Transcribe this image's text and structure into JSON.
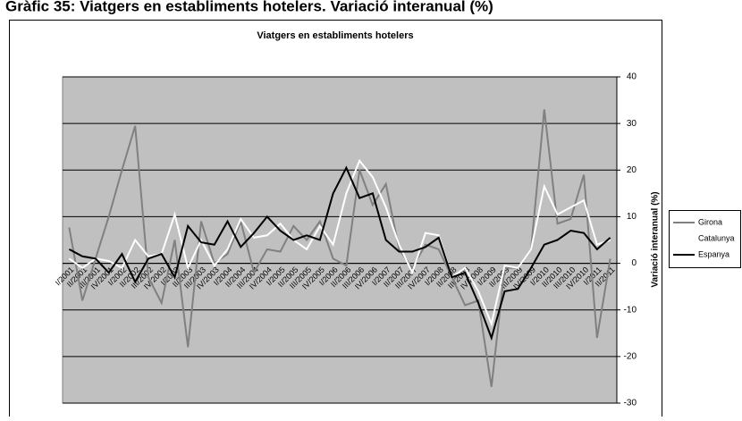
{
  "heading": "Gràfic 35: Viatgers en establiments hotelers. Variació interanual (%)",
  "chart_data": {
    "type": "line",
    "title": "Viatgers en establiments hotelers",
    "y_axis_label": "Variació interanual (%)",
    "categories": [
      "I/2001",
      "II/2001",
      "III/2001",
      "IV/2001",
      "I/2002",
      "II/2002",
      "III/2002",
      "IV/2002",
      "I/2003",
      "II/2003",
      "III/2003",
      "IV/2003",
      "I/2004",
      "II/2004",
      "III/2004",
      "IV/2004",
      "I/2005",
      "II/2005",
      "III/2005",
      "IV/2005",
      "I/2006",
      "II/2006",
      "III/2006",
      "IV/2006",
      "I/2007",
      "II/2007",
      "III/2007",
      "IV/2007",
      "I/2008",
      "II/2008",
      "III/2008",
      "IV/2008",
      "I/2009",
      "II/2009",
      "III/2009",
      "IV/2009",
      "I/2010",
      "II/2010",
      "III/2010",
      "IV/2010",
      "I/2011",
      "II/2011"
    ],
    "series": [
      {
        "name": "Girona",
        "color": "#808080",
        "values": [
          7.7,
          -8,
          1,
          10,
          20,
          29.5,
          -3,
          -8.5,
          5,
          -18,
          9,
          0,
          2,
          9,
          -2,
          3,
          2.5,
          8,
          5,
          9,
          1,
          -0.5,
          20,
          12.5,
          17,
          3,
          -1,
          4,
          3,
          -3,
          -9,
          -8,
          -26.5,
          -1,
          -1,
          3,
          33,
          8.5,
          9.5,
          19,
          -16,
          1
        ]
      },
      {
        "name": "Catalunya",
        "color": "#ffffff",
        "values": [
          1,
          -1,
          1,
          0.5,
          -1,
          5,
          1.5,
          2,
          10.5,
          -1,
          5,
          -0.5,
          3,
          9.5,
          5.5,
          6,
          8.5,
          5,
          3,
          8,
          4,
          15,
          22,
          18.5,
          12,
          4,
          -2,
          6.5,
          6,
          -3,
          -1,
          -6,
          -13,
          -0.5,
          -1,
          3,
          16.5,
          10.5,
          12,
          13.5,
          4,
          5
        ]
      },
      {
        "name": "Espanya",
        "color": "#000000",
        "values": [
          3,
          1.5,
          1,
          -2,
          2,
          -4,
          1,
          2,
          -3,
          8,
          4.5,
          4,
          9,
          3.5,
          6.5,
          10,
          7,
          5,
          6,
          5,
          15,
          20.5,
          14,
          15,
          5,
          2.5,
          2.5,
          3.5,
          5.5,
          -3,
          -2,
          -8.5,
          -16,
          -6,
          -5.5,
          -1,
          4,
          5,
          7,
          6.5,
          3,
          5.5
        ]
      }
    ],
    "ylim": [
      -30,
      40
    ],
    "yticks": [
      -30,
      -20,
      -10,
      0,
      10,
      20,
      30,
      40
    ],
    "grid": true,
    "plot_background": "#c0c0c0",
    "legend": "right"
  }
}
